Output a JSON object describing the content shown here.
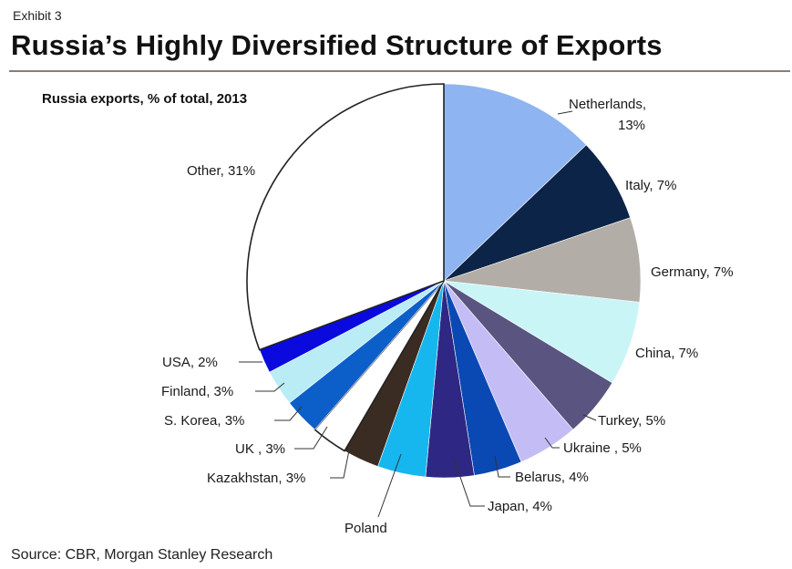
{
  "header": {
    "exhibit": "Exhibit 3",
    "title": "Russia’s Highly Diversified Structure of Exports"
  },
  "footer": {
    "source": "Source: CBR, Morgan Stanley Research"
  },
  "chart_data": {
    "type": "pie",
    "title": "Russia exports, % of total, 2013",
    "unit": "%",
    "slices": [
      {
        "label": "Netherlands,",
        "label2": "13%",
        "value": 13,
        "color": "#8fb4f2"
      },
      {
        "label": "Italy, 7%",
        "value": 7,
        "color": "#0b2448"
      },
      {
        "label": "Germany, 7%",
        "value": 7,
        "color": "#b3ada7"
      },
      {
        "label": "China, 7%",
        "value": 7,
        "color": "#c9f5f7"
      },
      {
        "label": "Turkey, 5%",
        "value": 5,
        "color": "#5a5480"
      },
      {
        "label": "Ukraine , 5%",
        "value": 5,
        "color": "#c4bdf5"
      },
      {
        "label": "Belarus, 4%",
        "value": 4,
        "color": "#0a49b3"
      },
      {
        "label": "Japan, 4%",
        "value": 4,
        "color": "#2e2884"
      },
      {
        "label": "Poland",
        "value": 4,
        "color": "#16b6ef"
      },
      {
        "label": "Kazakhstan, 3%",
        "value": 3,
        "color": "#3a2c22"
      },
      {
        "label": "UK , 3%",
        "value": 3,
        "color": "#ffffff"
      },
      {
        "label": "S. Korea, 3%",
        "value": 3,
        "color": "#0c5fc9"
      },
      {
        "label": "Finland, 3%",
        "value": 3,
        "color": "#b9ecf4"
      },
      {
        "label": "USA, 2%",
        "value": 2,
        "color": "#0a0adf"
      },
      {
        "label": "Other, 31%",
        "value": 31,
        "color": "#ffffff"
      }
    ],
    "start_angle_deg": 0,
    "direction": "clockwise",
    "legend": "none"
  }
}
